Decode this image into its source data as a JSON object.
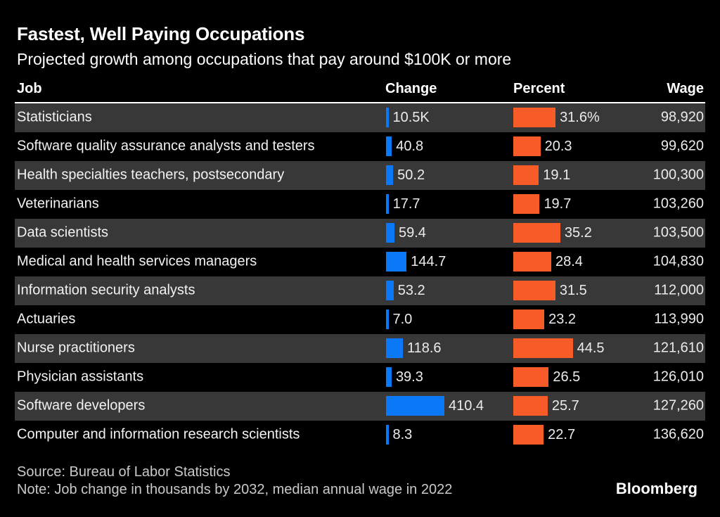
{
  "chart_data": {
    "type": "bar",
    "title": "Fastest, Well Paying Occupations",
    "subtitle": "Projected growth among occupations that pay around $100K or more",
    "columns": {
      "job": "Job",
      "change": "Change",
      "percent": "Percent",
      "wage": "Wage"
    },
    "change_unit": "thousands of jobs by 2032",
    "percent_unit": "%",
    "wage_unit": "median annual wage in 2022, USD",
    "change_axis_max": 410.4,
    "percent_axis_max": 44.5,
    "rows": [
      {
        "job": "Statisticians",
        "change": 10.5,
        "change_label": "10.5K",
        "percent": 31.6,
        "percent_label": "31.6%",
        "wage": "98,920"
      },
      {
        "job": "Software quality assurance analysts and testers",
        "change": 40.8,
        "change_label": "40.8",
        "percent": 20.3,
        "percent_label": "20.3",
        "wage": "99,620"
      },
      {
        "job": "Health specialties teachers, postsecondary",
        "change": 50.2,
        "change_label": "50.2",
        "percent": 19.1,
        "percent_label": "19.1",
        "wage": "100,300"
      },
      {
        "job": "Veterinarians",
        "change": 17.7,
        "change_label": "17.7",
        "percent": 19.7,
        "percent_label": "19.7",
        "wage": "103,260"
      },
      {
        "job": "Data scientists",
        "change": 59.4,
        "change_label": "59.4",
        "percent": 35.2,
        "percent_label": "35.2",
        "wage": "103,500"
      },
      {
        "job": "Medical and health services managers",
        "change": 144.7,
        "change_label": "144.7",
        "percent": 28.4,
        "percent_label": "28.4",
        "wage": "104,830"
      },
      {
        "job": "Information security analysts",
        "change": 53.2,
        "change_label": "53.2",
        "percent": 31.5,
        "percent_label": "31.5",
        "wage": "112,000"
      },
      {
        "job": "Actuaries",
        "change": 7.0,
        "change_label": "7.0",
        "percent": 23.2,
        "percent_label": "23.2",
        "wage": "113,990"
      },
      {
        "job": "Nurse practitioners",
        "change": 118.6,
        "change_label": "118.6",
        "percent": 44.5,
        "percent_label": "44.5",
        "wage": "121,610"
      },
      {
        "job": "Physician assistants",
        "change": 39.3,
        "change_label": "39.3",
        "percent": 26.5,
        "percent_label": "26.5",
        "wage": "126,010"
      },
      {
        "job": "Software developers",
        "change": 410.4,
        "change_label": "410.4",
        "percent": 25.7,
        "percent_label": "25.7",
        "wage": "127,260"
      },
      {
        "job": "Computer and information research scientists",
        "change": 8.3,
        "change_label": "8.3",
        "percent": 22.7,
        "percent_label": "22.7",
        "wage": "136,620"
      }
    ],
    "legend": "none",
    "grid": "off"
  },
  "footer": {
    "source": "Source: Bureau of Labor Statistics",
    "note": "Note: Job change in thousands by 2032, median annual wage in 2022",
    "brand": "Bloomberg"
  },
  "colors": {
    "change_bar": "#0a78f7",
    "percent_bar": "#f75c28",
    "row_stripe": "#383838",
    "background": "#000000",
    "header_text": "#ffffff",
    "body_text": "#ebebeb",
    "footer_text": "#c9c9c9"
  }
}
